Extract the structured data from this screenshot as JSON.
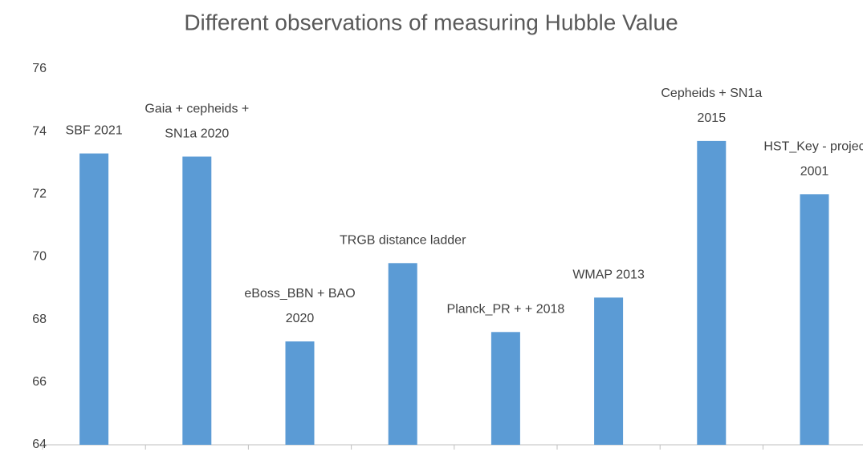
{
  "chart_data": {
    "type": "bar",
    "title": "Different observations of measuring  Hubble Value",
    "categories": [
      [
        "SBF 2021"
      ],
      [
        "Gaia + cepheids +",
        "SN1a 2020"
      ],
      [
        "eBoss_BBN + BAO",
        "2020"
      ],
      [
        "TRGB distance ladder"
      ],
      [
        "Planck_PR + + 2018"
      ],
      [
        "WMAP 2013"
      ],
      [
        "Cepheids + SN1a",
        "2015"
      ],
      [
        "HST_Key - projec",
        "2001"
      ]
    ],
    "values": [
      73.3,
      73.2,
      67.3,
      69.8,
      67.6,
      68.7,
      73.7,
      72.0
    ],
    "color": "#5b9bd5",
    "ylim": [
      64,
      76
    ],
    "yticks": [
      64,
      66,
      68,
      70,
      72,
      74,
      76
    ],
    "grid": false
  }
}
